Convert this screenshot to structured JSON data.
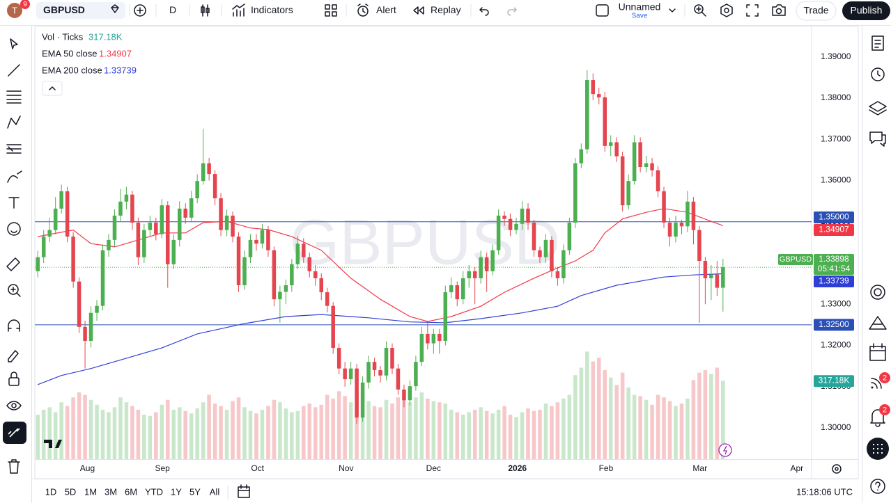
{
  "toolbar": {
    "avatar": "T",
    "notifications": "9",
    "symbol": "GBPUSD",
    "interval": "D",
    "indicators": "Indicators",
    "alert": "Alert",
    "replay": "Replay",
    "layout_name": "Unnamed",
    "save": "Save",
    "trade": "Trade",
    "publish": "Publish"
  },
  "chart_data": {
    "type": "candlestick",
    "watermark": "GBPUSD",
    "volume_name": "Vol · Ticks",
    "volume_label": "317.18K",
    "volume_color": "#26a69a",
    "up_color": "#4caf50",
    "down_color": "#e5454f",
    "grid": false,
    "xlim": [
      -0.5,
      131
    ],
    "ylim": [
      1.2924,
      1.3974
    ],
    "vlim": [
      0,
      1750
    ],
    "yticks": [
      {
        "value": 1.39,
        "label": "1.39000"
      },
      {
        "value": 1.38,
        "label": "1.38000"
      },
      {
        "value": 1.37,
        "label": "1.37000"
      },
      {
        "value": 1.36,
        "label": "1.36000"
      },
      {
        "value": 1.35,
        "label": "1.35000"
      },
      {
        "value": 1.34,
        "label": "1.34000"
      },
      {
        "value": 1.33,
        "label": "1.33000"
      },
      {
        "value": 1.32,
        "label": "1.32000"
      },
      {
        "value": 1.31,
        "label": "1.31000"
      },
      {
        "value": 1.3,
        "label": "1.30000"
      }
    ],
    "xticks": [
      {
        "value": 8.4,
        "label": "Aug"
      },
      {
        "value": 21.1,
        "label": "Sep"
      },
      {
        "value": 37.2,
        "label": "Oct"
      },
      {
        "value": 52.2,
        "label": "Nov"
      },
      {
        "value": 67,
        "label": "Dec"
      },
      {
        "value": 81.2,
        "label": "2026"
      },
      {
        "value": 96.2,
        "label": "Feb"
      },
      {
        "value": 112.1,
        "label": "Mar"
      },
      {
        "value": 128.5,
        "label": "Apr"
      }
    ],
    "hlines": [
      {
        "value": 1.35,
        "label": "1.35000"
      },
      {
        "value": 1.325,
        "label": "1.32500"
      }
    ],
    "hline_color": "#2a4fb5",
    "last_price": {
      "value": 1.33898,
      "label": "1.33898",
      "countdown": "05:41:54"
    },
    "ema": [
      {
        "name": "EMA 50 close",
        "value_label": "1.34907",
        "color": "#f23645",
        "x": [
          0,
          6,
          9,
          13,
          17,
          21,
          25,
          28,
          32,
          36,
          39,
          43,
          48,
          53,
          58,
          63,
          66,
          70,
          75,
          79,
          84,
          88,
          91,
          94,
          96,
          99,
          103,
          106,
          110,
          114,
          116
        ],
        "values": [
          1.3464,
          1.348,
          1.3447,
          1.3439,
          1.3456,
          1.3473,
          1.3473,
          1.3498,
          1.3501,
          1.3485,
          1.3481,
          1.3464,
          1.3431,
          1.3363,
          1.3312,
          1.327,
          1.3258,
          1.327,
          1.3295,
          1.3329,
          1.3363,
          1.3388,
          1.3405,
          1.3431,
          1.3473,
          1.3507,
          1.3523,
          1.3532,
          1.3523,
          1.3501,
          1.34907
        ]
      },
      {
        "name": "EMA 200 close",
        "value_label": "1.33739",
        "color": "#2f3fd6",
        "x": [
          0,
          4,
          9,
          15,
          21,
          27,
          35,
          42,
          48,
          56,
          63,
          69,
          75,
          82,
          88,
          92,
          98,
          106,
          111,
          116
        ],
        "values": [
          1.3105,
          1.3127,
          1.3144,
          1.3169,
          1.3194,
          1.3228,
          1.3253,
          1.327,
          1.3275,
          1.3267,
          1.3257,
          1.3255,
          1.3265,
          1.3279,
          1.3295,
          1.3321,
          1.3346,
          1.3366,
          1.3371,
          1.33739
        ]
      }
    ],
    "candles": [
      [
        1.338,
        1.343,
        1.3365,
        1.3414
      ],
      [
        1.3414,
        1.348,
        1.34,
        1.3464
      ],
      [
        1.3464,
        1.351,
        1.345,
        1.348
      ],
      [
        1.348,
        1.356,
        1.347,
        1.3532
      ],
      [
        1.3532,
        1.359,
        1.352,
        1.3574
      ],
      [
        1.3574,
        1.3585,
        1.345,
        1.3464
      ],
      [
        1.3464,
        1.3475,
        1.334,
        1.3355
      ],
      [
        1.3355,
        1.3365,
        1.323,
        1.3245
      ],
      [
        1.3245,
        1.326,
        1.3144,
        1.3211
      ],
      [
        1.3211,
        1.3295,
        1.3195,
        1.3279
      ],
      [
        1.3279,
        1.331,
        1.326,
        1.3296
      ],
      [
        1.3296,
        1.3445,
        1.3285,
        1.3431
      ],
      [
        1.3431,
        1.347,
        1.3415,
        1.3456
      ],
      [
        1.3456,
        1.353,
        1.344,
        1.3515
      ],
      [
        1.3515,
        1.358,
        1.35,
        1.3549
      ],
      [
        1.3549,
        1.3585,
        1.353,
        1.3566
      ],
      [
        1.3566,
        1.3575,
        1.348,
        1.3498
      ],
      [
        1.3498,
        1.351,
        1.3395,
        1.3414
      ],
      [
        1.3414,
        1.3495,
        1.34,
        1.348
      ],
      [
        1.348,
        1.3515,
        1.3465,
        1.3498
      ],
      [
        1.3498,
        1.351,
        1.3455,
        1.347
      ],
      [
        1.347,
        1.3555,
        1.346,
        1.354
      ],
      [
        1.354,
        1.355,
        1.334,
        1.3397
      ],
      [
        1.3397,
        1.347,
        1.3385,
        1.3456
      ],
      [
        1.3456,
        1.355,
        1.344,
        1.3532
      ],
      [
        1.3532,
        1.3545,
        1.3495,
        1.351
      ],
      [
        1.351,
        1.3575,
        1.35,
        1.3557
      ],
      [
        1.3557,
        1.3615,
        1.3545,
        1.3599
      ],
      [
        1.3599,
        1.3726,
        1.359,
        1.3642
      ],
      [
        1.3642,
        1.3655,
        1.36,
        1.3616
      ],
      [
        1.3616,
        1.3625,
        1.354,
        1.3557
      ],
      [
        1.3557,
        1.357,
        1.3465,
        1.348
      ],
      [
        1.348,
        1.353,
        1.3465,
        1.3515
      ],
      [
        1.3515,
        1.3525,
        1.345,
        1.3464
      ],
      [
        1.3464,
        1.3475,
        1.333,
        1.3346
      ],
      [
        1.3346,
        1.343,
        1.3335,
        1.3414
      ],
      [
        1.3414,
        1.347,
        1.34,
        1.3456
      ],
      [
        1.3456,
        1.347,
        1.343,
        1.3447
      ],
      [
        1.3447,
        1.3495,
        1.3435,
        1.348
      ],
      [
        1.348,
        1.349,
        1.3415,
        1.3431
      ],
      [
        1.3431,
        1.344,
        1.3295,
        1.3312
      ],
      [
        1.3312,
        1.3345,
        1.3255,
        1.333
      ],
      [
        1.333,
        1.336,
        1.33,
        1.3346
      ],
      [
        1.3346,
        1.341,
        1.333,
        1.3397
      ],
      [
        1.3397,
        1.3465,
        1.3385,
        1.3447
      ],
      [
        1.3447,
        1.346,
        1.34,
        1.3414
      ],
      [
        1.3414,
        1.3425,
        1.3365,
        1.338
      ],
      [
        1.338,
        1.3395,
        1.3345,
        1.3363
      ],
      [
        1.3363,
        1.3375,
        1.331,
        1.3329
      ],
      [
        1.3329,
        1.334,
        1.328,
        1.3296
      ],
      [
        1.3296,
        1.3305,
        1.318,
        1.3194
      ],
      [
        1.3194,
        1.3205,
        1.313,
        1.3144
      ],
      [
        1.3144,
        1.316,
        1.31,
        1.3118
      ],
      [
        1.3118,
        1.316,
        1.3105,
        1.3144
      ],
      [
        1.3144,
        1.3155,
        1.301,
        1.3025
      ],
      [
        1.3025,
        1.3125,
        1.3015,
        1.311
      ],
      [
        1.311,
        1.3175,
        1.3095,
        1.316
      ],
      [
        1.316,
        1.317,
        1.3125,
        1.314
      ],
      [
        1.314,
        1.315,
        1.311,
        1.3127
      ],
      [
        1.3127,
        1.321,
        1.3115,
        1.3194
      ],
      [
        1.3194,
        1.3205,
        1.313,
        1.3144
      ],
      [
        1.3144,
        1.3155,
        1.308,
        1.3093
      ],
      [
        1.3093,
        1.3105,
        1.305,
        1.3067
      ],
      [
        1.3067,
        1.3115,
        1.3055,
        1.3101
      ],
      [
        1.3101,
        1.3175,
        1.309,
        1.316
      ],
      [
        1.316,
        1.3245,
        1.315,
        1.3228
      ],
      [
        1.3228,
        1.326,
        1.319,
        1.3205
      ],
      [
        1.3205,
        1.324,
        1.318,
        1.3228
      ],
      [
        1.3228,
        1.324,
        1.318,
        1.3211
      ],
      [
        1.3211,
        1.3345,
        1.32,
        1.3329
      ],
      [
        1.3329,
        1.3365,
        1.3315,
        1.3346
      ],
      [
        1.3346,
        1.3355,
        1.3295,
        1.3312
      ],
      [
        1.3312,
        1.338,
        1.33,
        1.3363
      ],
      [
        1.3363,
        1.3395,
        1.334,
        1.338
      ],
      [
        1.338,
        1.339,
        1.33,
        1.3363
      ],
      [
        1.3363,
        1.343,
        1.335,
        1.3414
      ],
      [
        1.3414,
        1.3425,
        1.333,
        1.338
      ],
      [
        1.338,
        1.3445,
        1.337,
        1.3431
      ],
      [
        1.3431,
        1.353,
        1.342,
        1.3515
      ],
      [
        1.3515,
        1.3525,
        1.349,
        1.3507
      ],
      [
        1.3507,
        1.352,
        1.3465,
        1.348
      ],
      [
        1.348,
        1.351,
        1.347,
        1.3495
      ],
      [
        1.3495,
        1.355,
        1.348,
        1.3532
      ],
      [
        1.3532,
        1.3545,
        1.348,
        1.3498
      ],
      [
        1.3498,
        1.3505,
        1.3415,
        1.3431
      ],
      [
        1.3431,
        1.344,
        1.34,
        1.3414
      ],
      [
        1.3414,
        1.347,
        1.34,
        1.3456
      ],
      [
        1.3456,
        1.3465,
        1.3365,
        1.338
      ],
      [
        1.338,
        1.339,
        1.3345,
        1.3363
      ],
      [
        1.3363,
        1.3445,
        1.335,
        1.3431
      ],
      [
        1.3431,
        1.351,
        1.342,
        1.3498
      ],
      [
        1.3498,
        1.3655,
        1.3485,
        1.3642
      ],
      [
        1.3642,
        1.369,
        1.363,
        1.3676
      ],
      [
        1.3676,
        1.3868,
        1.3665,
        1.3844
      ],
      [
        1.3844,
        1.386,
        1.3795,
        1.381
      ],
      [
        1.381,
        1.3825,
        1.3785,
        1.3802
      ],
      [
        1.3802,
        1.3815,
        1.367,
        1.3684
      ],
      [
        1.3684,
        1.371,
        1.366,
        1.3693
      ],
      [
        1.3693,
        1.3705,
        1.3645,
        1.3659
      ],
      [
        1.3659,
        1.367,
        1.3525,
        1.354
      ],
      [
        1.354,
        1.3615,
        1.353,
        1.3599
      ],
      [
        1.3599,
        1.371,
        1.359,
        1.3693
      ],
      [
        1.3693,
        1.3705,
        1.362,
        1.3633
      ],
      [
        1.3633,
        1.366,
        1.362,
        1.3642
      ],
      [
        1.3642,
        1.3655,
        1.361,
        1.3625
      ],
      [
        1.3625,
        1.3635,
        1.356,
        1.3574
      ],
      [
        1.3574,
        1.3585,
        1.3485,
        1.3498
      ],
      [
        1.3498,
        1.351,
        1.344,
        1.3464
      ],
      [
        1.3464,
        1.3515,
        1.345,
        1.3498
      ],
      [
        1.3498,
        1.3505,
        1.347,
        1.3489
      ],
      [
        1.3489,
        1.3575,
        1.3475,
        1.3549
      ],
      [
        1.3549,
        1.356,
        1.3445,
        1.348
      ],
      [
        1.348,
        1.349,
        1.3255,
        1.3405
      ],
      [
        1.3405,
        1.3415,
        1.33,
        1.3363
      ],
      [
        1.3363,
        1.3395,
        1.331,
        1.3372
      ],
      [
        1.3372,
        1.3405,
        1.332,
        1.334
      ],
      [
        1.334,
        1.341,
        1.3282,
        1.33898
      ]
    ],
    "volume": [
      180,
      200,
      210,
      190,
      230,
      215,
      250,
      270,
      260,
      240,
      220,
      200,
      190,
      210,
      250,
      230,
      215,
      200,
      180,
      175,
      190,
      220,
      240,
      200,
      210,
      195,
      185,
      205,
      230,
      260,
      225,
      215,
      200,
      235,
      250,
      210,
      195,
      185,
      200,
      215,
      240,
      230,
      205,
      190,
      195,
      215,
      225,
      210,
      220,
      260,
      245,
      275,
      255,
      230,
      285,
      250,
      235,
      215,
      210,
      240,
      225,
      250,
      265,
      230,
      250,
      270,
      245,
      235,
      230,
      225,
      200,
      190,
      180,
      190,
      200,
      210,
      195,
      185,
      200,
      215,
      180,
      170,
      190,
      205,
      195,
      200,
      225,
      215,
      230,
      245,
      260,
      340,
      370,
      435,
      395,
      410,
      360,
      330,
      300,
      350,
      290,
      260,
      255,
      240,
      220,
      260,
      250,
      235,
      215,
      225,
      245,
      320,
      350,
      360,
      345,
      370,
      317.18
    ]
  },
  "bottom_bar": {
    "ranges": [
      "1D",
      "5D",
      "1M",
      "3M",
      "6M",
      "YTD",
      "1Y",
      "5Y",
      "All"
    ],
    "clock": "15:18:06 UTC"
  },
  "sidebar": {
    "badges": [
      "2",
      "2"
    ]
  }
}
